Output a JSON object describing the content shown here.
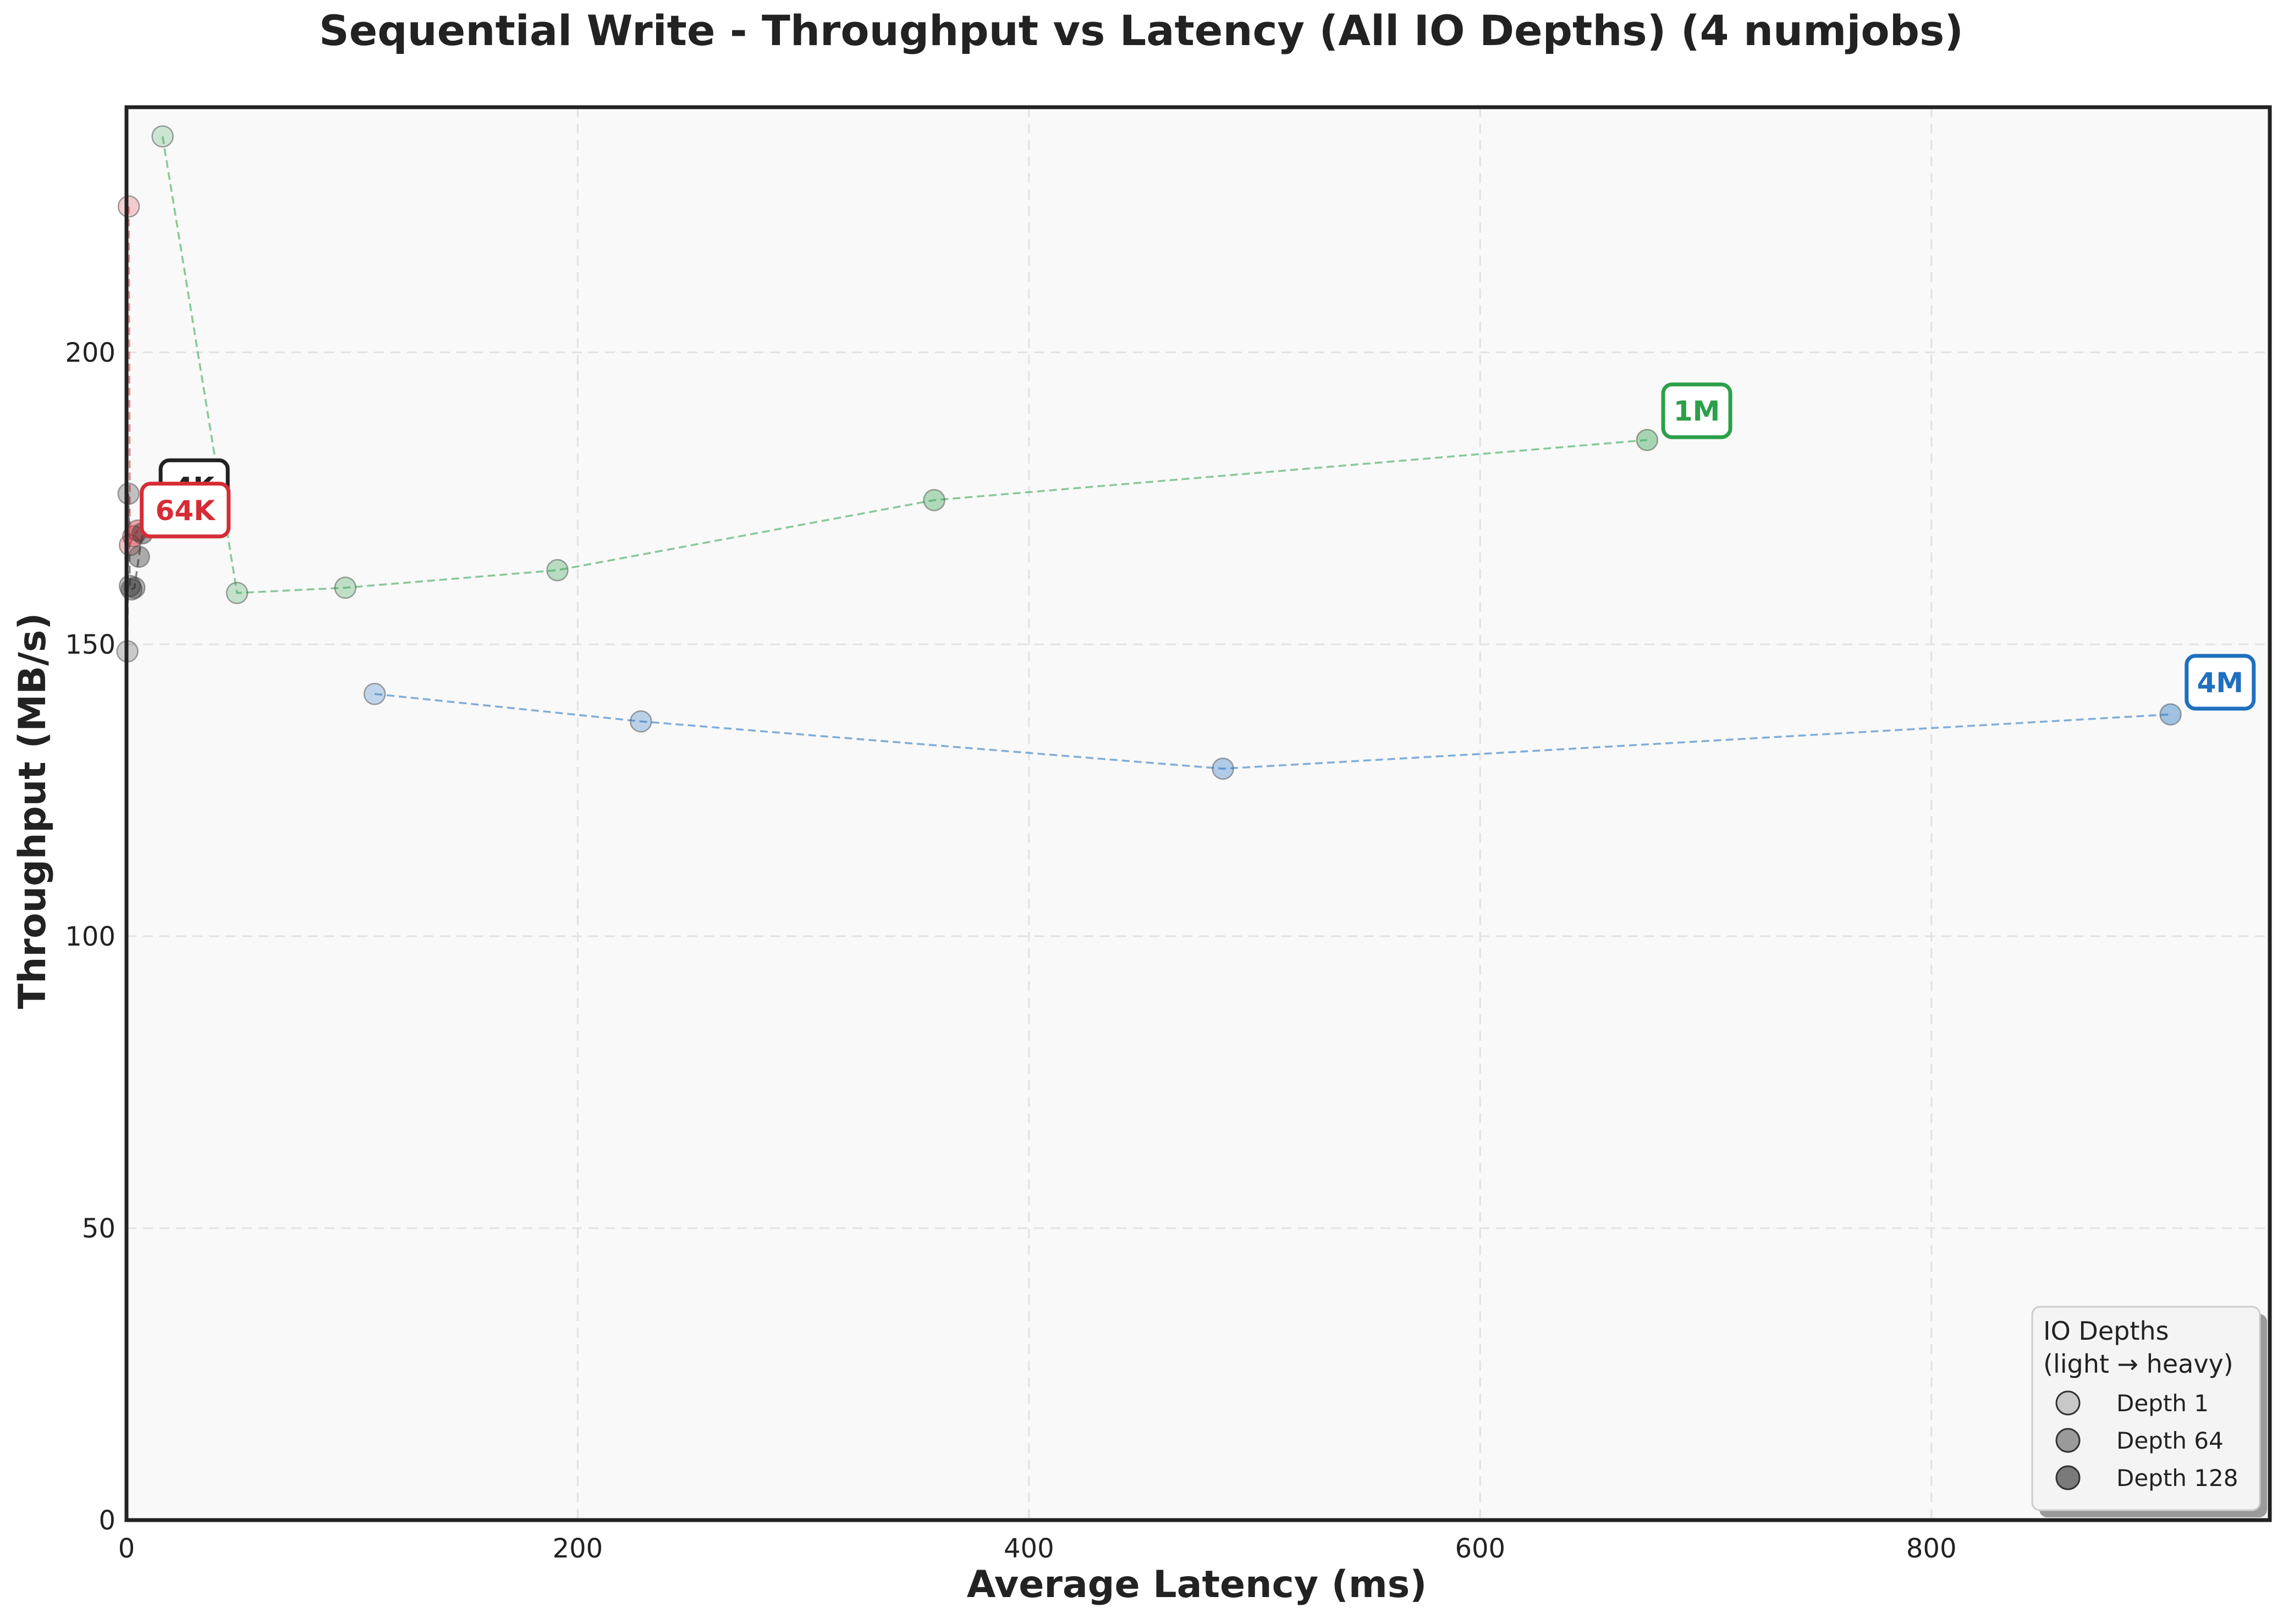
{
  "chart_data": {
    "type": "scatter",
    "title": "Sequential Write - Throughput vs Latency (All IO Depths) (4 numjobs)",
    "xlabel": "Average Latency (ms)",
    "ylabel": "Throughput (MB/s)",
    "xlim": [
      0,
      950
    ],
    "ylim": [
      0,
      242
    ],
    "x_ticks": [
      0,
      200,
      400,
      600,
      800
    ],
    "y_ticks": [
      0,
      50,
      100,
      150,
      200
    ],
    "grid": true,
    "legend_placement": "bottom-right",
    "series": [
      {
        "name": "4M",
        "color": "#1f6fbf",
        "points": [
          {
            "x": 110,
            "y": 141.5
          },
          {
            "x": 228,
            "y": 136.8
          },
          {
            "x": 486,
            "y": 128.7
          },
          {
            "x": 906,
            "y": 138.0
          }
        ],
        "depth_levels": [
          0.35,
          0.5,
          0.7,
          1.0
        ]
      },
      {
        "name": "1M",
        "color": "#2ca04a",
        "points": [
          {
            "x": 16,
            "y": 237.0
          },
          {
            "x": 49,
            "y": 158.8
          },
          {
            "x": 97,
            "y": 159.7
          },
          {
            "x": 191,
            "y": 162.7
          },
          {
            "x": 358,
            "y": 174.7
          },
          {
            "x": 674,
            "y": 185.0
          }
        ],
        "depth_levels": [
          0.2,
          0.35,
          0.5,
          0.65,
          0.8,
          1.0
        ]
      },
      {
        "name": "64K",
        "color": "#d62c36",
        "points": [
          {
            "x": 1.0,
            "y": 225.0
          },
          {
            "x": 1.5,
            "y": 167.0
          },
          {
            "x": 3.0,
            "y": 168.5
          },
          {
            "x": 5.0,
            "y": 169.5
          }
        ],
        "depth_levels": [
          0.2,
          0.5,
          0.75,
          1.0
        ]
      },
      {
        "name": "4K",
        "color": "#222222",
        "points": [
          {
            "x": 0.4,
            "y": 148.8
          },
          {
            "x": 0.9,
            "y": 175.8
          },
          {
            "x": 1.5,
            "y": 160.0
          },
          {
            "x": 2.2,
            "y": 159.4
          },
          {
            "x": 3.5,
            "y": 159.7
          },
          {
            "x": 5.5,
            "y": 165.0
          },
          {
            "x": 7.0,
            "y": 169.0
          }
        ],
        "depth_levels": [
          0.2,
          0.35,
          0.5,
          0.6,
          0.7,
          0.85,
          1.0
        ]
      }
    ],
    "series_labels": [
      {
        "text": "4K",
        "series": "4K",
        "anchor": {
          "x": 30,
          "y": 177
        }
      },
      {
        "text": "64K",
        "series": "64K",
        "anchor": {
          "x": 26,
          "y": 173
        }
      },
      {
        "text": "1M",
        "series": "1M",
        "anchor": {
          "x": 696,
          "y": 190
        }
      },
      {
        "text": "4M",
        "series": "4M",
        "anchor": {
          "x": 928,
          "y": 143.5
        }
      }
    ],
    "legend": {
      "title_line1": "IO Depths",
      "title_line2": "(light → heavy)",
      "entries": [
        {
          "label": "Depth 1",
          "shade": "#c8c8c8"
        },
        {
          "label": "Depth 64",
          "shade": "#9a9a9a"
        },
        {
          "label": "Depth 128",
          "shade": "#7a7a7a"
        }
      ]
    }
  }
}
